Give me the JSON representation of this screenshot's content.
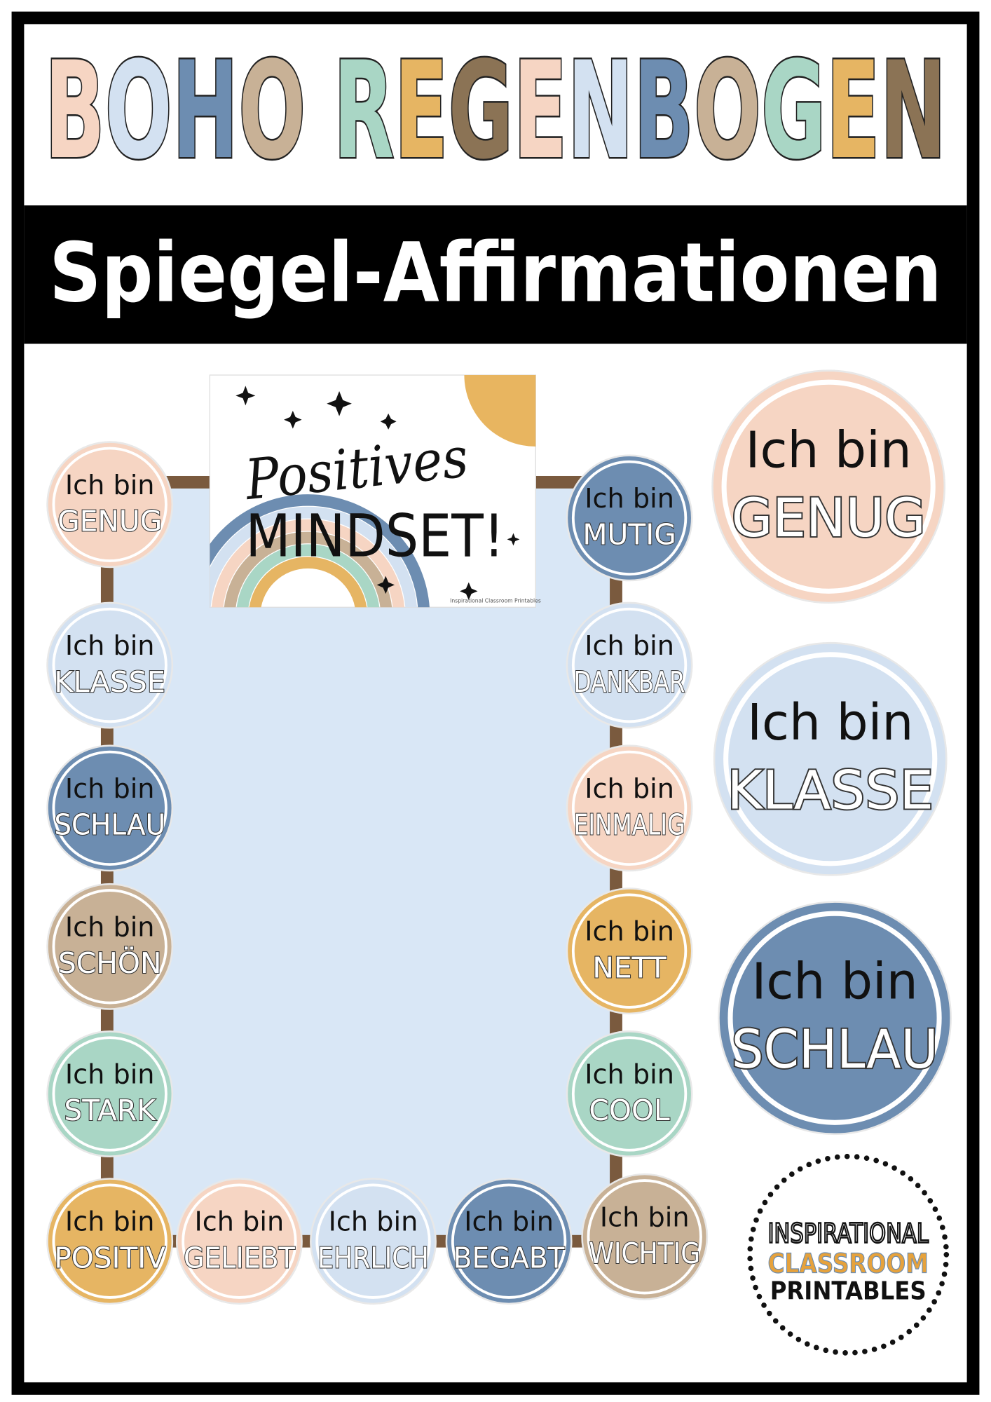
{
  "header": {
    "title": "BOHO REGENBOGEN",
    "title_colors": [
      "#f6d5c3",
      "#d3e1f1",
      "#6d8db1",
      "#c8b196",
      "#a9d6c5",
      "#e6b563",
      "#8b7355"
    ],
    "subtitle": "Spiegel-Affirmationen"
  },
  "poster": {
    "line1": "Positives",
    "line2": "MINDSET!",
    "credit": "Inspirational Classroom Printables"
  },
  "circles": {
    "left": [
      {
        "line1": "Ich bin",
        "word": "GENUG",
        "color": "#f6d5c3"
      },
      {
        "line1": "Ich bin",
        "word": "KLASSE",
        "color": "#d3e1f1"
      },
      {
        "line1": "Ich bin",
        "word": "SCHLAU",
        "color": "#6d8db1"
      },
      {
        "line1": "Ich bin",
        "word": "SCHÖN",
        "color": "#c8b196"
      },
      {
        "line1": "Ich bin",
        "word": "STARK",
        "color": "#a9d6c5"
      }
    ],
    "right": [
      {
        "line1": "Ich bin",
        "word": "MUTIG",
        "color": "#6d8db1"
      },
      {
        "line1": "Ich bin",
        "word": "DANKBAR",
        "color": "#d3e1f1"
      },
      {
        "line1": "Ich bin",
        "word": "EINMALIG",
        "color": "#f6d5c3"
      },
      {
        "line1": "Ich bin",
        "word": "NETT",
        "color": "#e6b563"
      },
      {
        "line1": "Ich bin",
        "word": "COOL",
        "color": "#a9d6c5"
      }
    ],
    "bottom": [
      {
        "line1": "Ich bin",
        "word": "POSITIV",
        "color": "#e6b563"
      },
      {
        "line1": "Ich bin",
        "word": "GELIEBT",
        "color": "#f6d5c3"
      },
      {
        "line1": "Ich bin",
        "word": "EHRLICH",
        "color": "#d3e1f1"
      },
      {
        "line1": "Ich bin",
        "word": "BEGABT",
        "color": "#6d8db1"
      },
      {
        "line1": "Ich bin",
        "word": "WICHTIG",
        "color": "#c8b196"
      }
    ],
    "large": [
      {
        "line1": "Ich bin",
        "word": "GENUG",
        "color": "#f6d5c3"
      },
      {
        "line1": "Ich bin",
        "word": "KLASSE",
        "color": "#d3e1f1"
      },
      {
        "line1": "Ich bin",
        "word": "SCHLAU",
        "color": "#6d8db1"
      }
    ]
  },
  "logo": {
    "line1": "INSPIRATIONAL",
    "line2": "CLASSROOM",
    "line3": "PRINTABLES"
  }
}
